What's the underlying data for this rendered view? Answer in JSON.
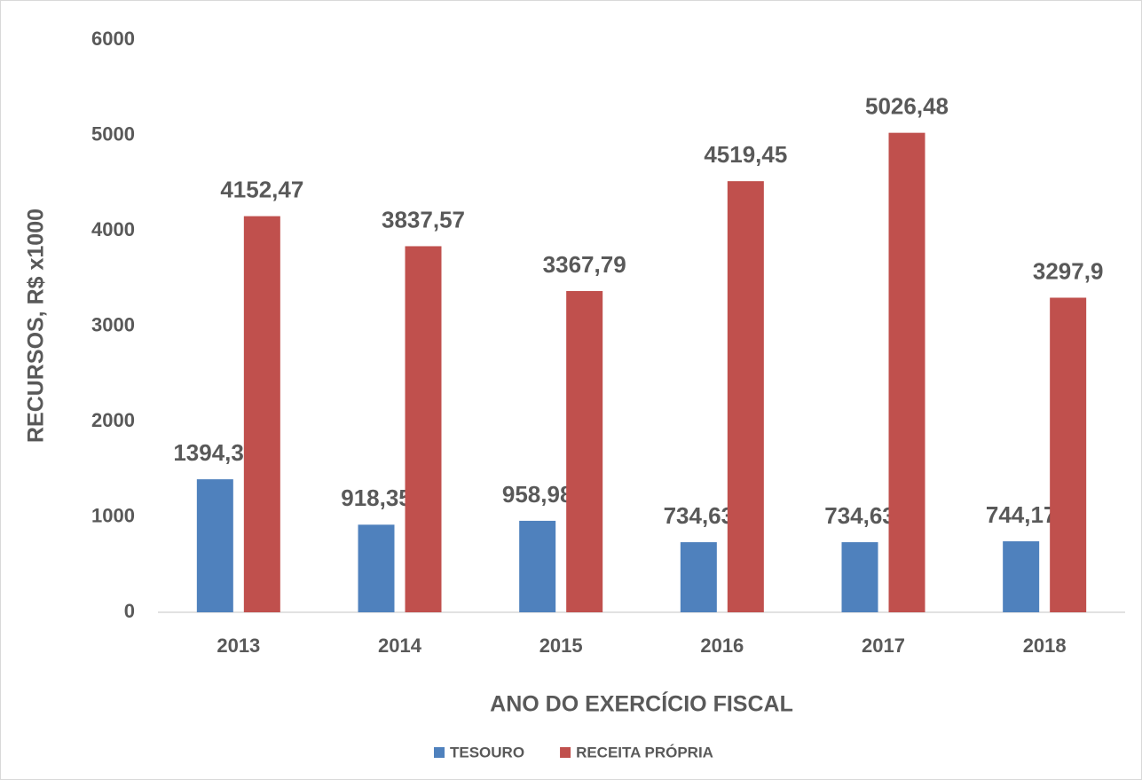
{
  "chart_data": {
    "type": "bar",
    "x_label": "ANO DO EXERCÍCIO FISCAL",
    "y_label": "RECURSOS, R$ x1000",
    "categories": [
      "2013",
      "2014",
      "2015",
      "2016",
      "2017",
      "2018"
    ],
    "series": [
      {
        "name": "TESOURO",
        "color": "#4f81bd",
        "values": [
          1394.35,
          918.35,
          958.98,
          734.63,
          734.63,
          744.17
        ],
        "value_labels": [
          "1394,35",
          "918,35",
          "958,98",
          "734,63",
          "734,63",
          "744,17"
        ]
      },
      {
        "name": "RECEITA PRÓPRIA",
        "color": "#c0504d",
        "values": [
          4152.47,
          3837.57,
          3367.79,
          4519.45,
          5026.48,
          3297.9
        ],
        "value_labels": [
          "4152,47",
          "3837,57",
          "3367,79",
          "4519,45",
          "5026,48",
          "3297,9"
        ]
      }
    ],
    "ylim": [
      0,
      6000
    ],
    "yticks": [
      0,
      1000,
      2000,
      3000,
      4000,
      5000,
      6000
    ],
    "grid": false,
    "legend": "bottom"
  }
}
